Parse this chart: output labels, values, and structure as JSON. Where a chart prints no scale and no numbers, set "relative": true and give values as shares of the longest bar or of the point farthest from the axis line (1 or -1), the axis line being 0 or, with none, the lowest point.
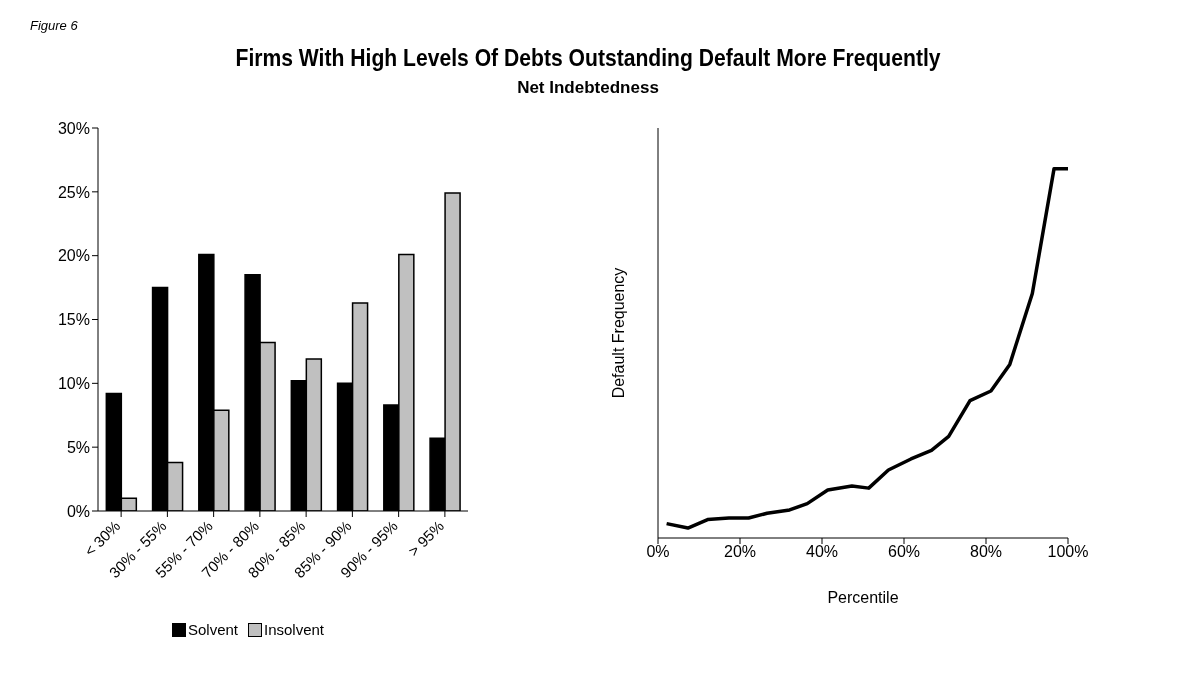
{
  "chart_data": [
    {
      "type": "bar",
      "title": "Firms With High Levels Of Debts Outstanding Default More Frequently",
      "annotations": [
        "Figure 6"
      ],
      "categories": [
        "< 30%",
        "30% - 55%",
        "55% - 70%",
        "70% - 80%",
        "80% - 85%",
        "85% - 90%",
        "90% - 95%",
        "> 95%"
      ],
      "series": [
        {
          "name": "Solvent",
          "color": "#000000",
          "values": [
            9.2,
            17.5,
            20.1,
            18.5,
            10.2,
            10.0,
            8.3,
            5.7
          ]
        },
        {
          "name": "Insolvent",
          "color": "#c0c0c0",
          "values": [
            1.0,
            3.8,
            7.9,
            13.2,
            11.9,
            16.3,
            20.1,
            24.9
          ]
        }
      ],
      "ylim": [
        0,
        30
      ],
      "yticks": [
        {
          "value": 0,
          "label": "0%"
        },
        {
          "value": 5,
          "label": "5%"
        },
        {
          "value": 10,
          "label": "10%"
        },
        {
          "value": 15,
          "label": "15%"
        },
        {
          "value": 20,
          "label": "20%"
        },
        {
          "value": 25,
          "label": "25%"
        },
        {
          "value": 30,
          "label": "30%"
        }
      ],
      "legend": "bottom",
      "grid": false
    },
    {
      "type": "line",
      "subtitle": "Net Indebtedness",
      "xlabel": "Percentile",
      "ylabel": "Default Frequency",
      "relative": true,
      "x": [
        2.1,
        7.3,
        12.1,
        17.3,
        22.1,
        26.6,
        32.1,
        36.4,
        41.4,
        47.3,
        51.4,
        56.2,
        61.7,
        66.7,
        70.9,
        76.1,
        81.2,
        85.8,
        91.3,
        96.6,
        100
      ],
      "series": [
        {
          "color": "#000000",
          "values": [
            0.039,
            0.027,
            0.05,
            0.054,
            0.054,
            0.067,
            0.076,
            0.093,
            0.13,
            0.141,
            0.135,
            0.184,
            0.214,
            0.237,
            0.275,
            0.372,
            0.398,
            0.47,
            0.662,
            1.0,
            1.0
          ]
        }
      ],
      "xlim": [
        0,
        100
      ],
      "xticks": [
        {
          "value": 0,
          "label": "0%"
        },
        {
          "value": 20,
          "label": "20%"
        },
        {
          "value": 40,
          "label": "40%"
        },
        {
          "value": 60,
          "label": "60%"
        },
        {
          "value": 80,
          "label": "80%"
        },
        {
          "value": 100,
          "label": "100%"
        }
      ],
      "marker": "none",
      "line_style": "solid",
      "grid": false,
      "legend": false
    }
  ]
}
